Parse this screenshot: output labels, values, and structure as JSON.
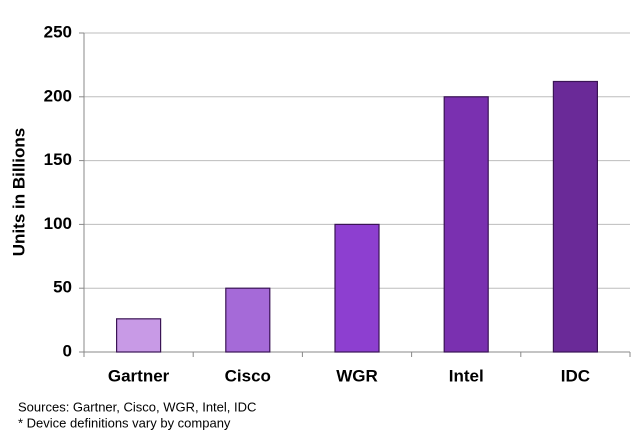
{
  "chart_data": {
    "type": "bar",
    "y_label": "Units in Billions",
    "categories": [
      "Gartner",
      "Cisco",
      "WGR",
      "Intel",
      "IDC"
    ],
    "values": [
      26,
      50,
      100,
      200,
      212
    ],
    "colors": [
      "#c89ae6",
      "#a56ad8",
      "#8d3fd0",
      "#7a30b0",
      "#6a2a98"
    ],
    "ylim": [
      0,
      250
    ],
    "yticks": [
      0,
      50,
      100,
      150,
      200,
      250
    ],
    "grid": true,
    "footnotes": [
      "Sources: Gartner, Cisco, WGR, Intel, IDC",
      "* Device definitions vary by company"
    ]
  }
}
